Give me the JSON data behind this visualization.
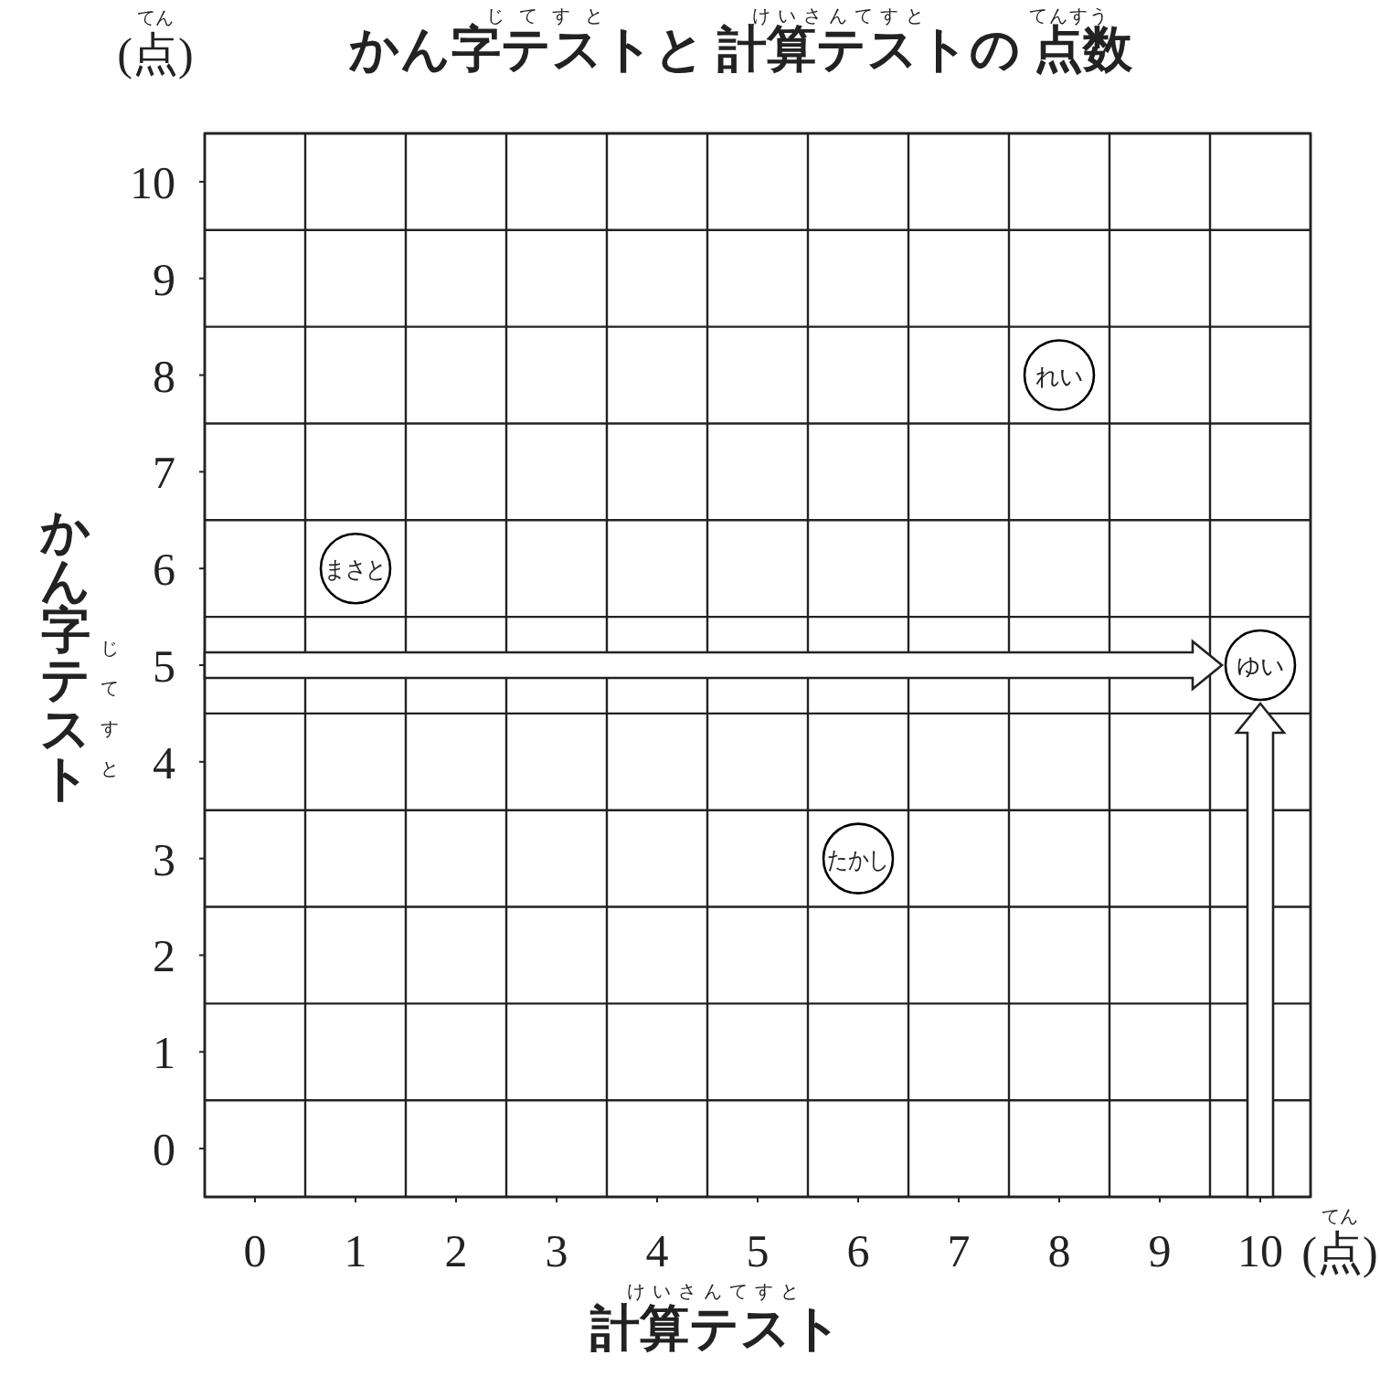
{
  "chart_data": {
    "type": "scatter",
    "title": "かん字テストと 計算テストの 点数",
    "xlabel": "計算テスト",
    "ylabel": "かん字テスト",
    "series": [
      {
        "name": "まさと",
        "color": "#000000",
        "x": [
          1
        ],
        "values": [
          6
        ]
      },
      {
        "name": "れい",
        "color": "#000000",
        "x": [
          8
        ],
        "values": [
          8
        ]
      },
      {
        "name": "たかし",
        "color": "#000000",
        "x": [
          6
        ],
        "values": [
          3
        ]
      },
      {
        "name": "ゆい",
        "color": "#000000",
        "x": [
          10
        ],
        "values": [
          5
        ]
      }
    ],
    "xlim": [
      -0.5,
      10.5
    ],
    "ylim": [
      -0.5,
      10.5
    ],
    "xticks": [
      {
        "value": -0.5,
        "label": null
      },
      0,
      {
        "value": 0.5,
        "label": null
      },
      1,
      {
        "value": 1.5,
        "label": null
      },
      2,
      {
        "value": 2.5,
        "label": null
      },
      3,
      {
        "value": 3.5,
        "label": null
      },
      4,
      {
        "value": 4.5,
        "label": null
      },
      5,
      {
        "value": 5.5,
        "label": null
      },
      6,
      {
        "value": 6.5,
        "label": null
      },
      7,
      {
        "value": 7.5,
        "label": null
      },
      8,
      {
        "value": 8.5,
        "label": null
      },
      9,
      {
        "value": 9.5,
        "label": null
      },
      10,
      {
        "value": 10.5,
        "label": null
      }
    ],
    "yticks": [
      {
        "value": -0.5,
        "label": null
      },
      0,
      {
        "value": 0.5,
        "label": null
      },
      1,
      {
        "value": 1.5,
        "label": null
      },
      2,
      {
        "value": 2.5,
        "label": null
      },
      3,
      {
        "value": 3.5,
        "label": null
      },
      4,
      {
        "value": 4.5,
        "label": null
      },
      5,
      {
        "value": 5.5,
        "label": null
      },
      6,
      {
        "value": 6.5,
        "label": null
      },
      7,
      {
        "value": 7.5,
        "label": null
      },
      8,
      {
        "value": 8.5,
        "label": null
      },
      9,
      {
        "value": 9.5,
        "label": null
      },
      10,
      {
        "value": 10.5,
        "label": null
      }
    ],
    "grid": true,
    "marker": "circle",
    "annotations": [
      "じてすと",
      "けいさんてすと",
      "てんすう",
      "(点)",
      "てん",
      "(点)",
      "てん",
      "けいさんてすと",
      "じてすと"
    ]
  }
}
